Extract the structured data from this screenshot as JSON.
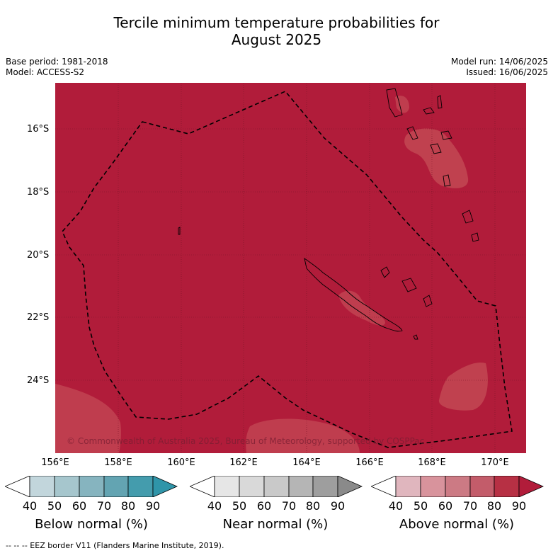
{
  "title_line1": "Tercile minimum temperature probabilities for",
  "title_line2": "August 2025",
  "base_period": "Base period: 1981-2018",
  "model": "Model: ACCESS-S2",
  "model_run": "Model run: 14/06/2025",
  "issued": "Issued: 16/06/2025",
  "lat_labels": [
    "16°S",
    "18°S",
    "20°S",
    "22°S",
    "24°S"
  ],
  "lon_labels": [
    "156°E",
    "158°E",
    "160°E",
    "162°E",
    "164°E",
    "166°E",
    "168°E",
    "170°E"
  ],
  "copyright": "© Commonwealth of Australia 2025, Bureau of Meteorology, supported by COSPPac",
  "colorbars": [
    {
      "label": "Below normal (%)",
      "ticks": [
        "40",
        "50",
        "60",
        "70",
        "80",
        "90"
      ],
      "colors": [
        "#ffffff",
        "#c2d6dc",
        "#a6c6cd",
        "#86b4bf",
        "#63a4b2",
        "#449cad",
        "#2f95a9"
      ]
    },
    {
      "label": "Near normal (%)",
      "ticks": [
        "40",
        "50",
        "60",
        "70",
        "80",
        "90"
      ],
      "colors": [
        "#ffffff",
        "#e6e6e6",
        "#d9d9d9",
        "#c9c9c9",
        "#b5b5b5",
        "#9e9e9e",
        "#8a8a8a"
      ]
    },
    {
      "label": "Above normal (%)",
      "ticks": [
        "40",
        "50",
        "60",
        "70",
        "80",
        "90"
      ],
      "colors": [
        "#ffffff",
        "#e0b6be",
        "#d8939c",
        "#cc7a84",
        "#c35c6a",
        "#b73044",
        "#b11c3a"
      ]
    }
  ],
  "eez_legend": "--  --  -- EEZ border V11 (Flanders Marine Institute, 2019).",
  "colors": {
    "above_80_90": "#b11c3a",
    "above_70_80": "#c0414f"
  }
}
